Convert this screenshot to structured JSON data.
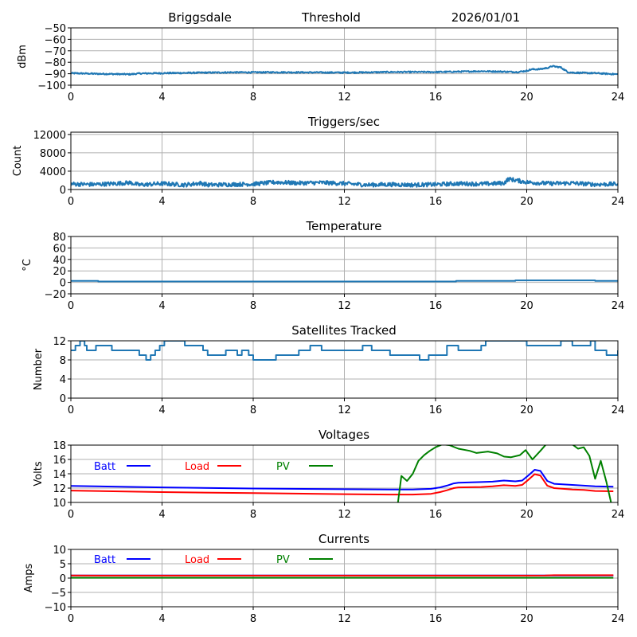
{
  "header": {
    "station": "Briggsdale",
    "mode": "Threshold",
    "date": "2026/01/01"
  },
  "chart_data": [
    {
      "id": "threshold",
      "type": "line",
      "title": "",
      "xlabel": "",
      "ylabel": "dBm",
      "xlim": [
        0,
        24
      ],
      "ylim": [
        -100,
        -50
      ],
      "xticks": [
        0,
        4,
        8,
        12,
        16,
        20,
        24
      ],
      "yticks": [
        -100,
        -90,
        -80,
        -70,
        -60,
        -50
      ],
      "ytick_labels": [
        "−100",
        "−90",
        "−80",
        "−70",
        "−60",
        "−50"
      ],
      "grid": true,
      "series": [
        {
          "name": "Threshold",
          "color": "#1f77b4",
          "noise": 0.6,
          "x": [
            0,
            1,
            2,
            2.6,
            3,
            4,
            5,
            6,
            7,
            8,
            9,
            10,
            11,
            12,
            13,
            14,
            15,
            16,
            17,
            18,
            19,
            19.6,
            20,
            20.2,
            20.6,
            21.0,
            21.1,
            21.5,
            21.8,
            22,
            22.5,
            23,
            23.5,
            24
          ],
          "y": [
            -89.5,
            -90,
            -90.3,
            -90.5,
            -89.8,
            -89.5,
            -89.3,
            -89,
            -88.8,
            -88.8,
            -88.7,
            -88.8,
            -88.9,
            -89,
            -88.8,
            -88.5,
            -88.5,
            -88.5,
            -88.2,
            -87.8,
            -88.2,
            -88.5,
            -87.5,
            -86.2,
            -86,
            -84.5,
            -83.3,
            -84.5,
            -88.5,
            -89,
            -89.3,
            -89.5,
            -90,
            -90.5
          ]
        }
      ]
    },
    {
      "id": "triggers",
      "type": "line",
      "title": "Triggers/sec",
      "xlabel": "",
      "ylabel": "Count",
      "xlim": [
        0,
        24
      ],
      "ylim": [
        0,
        12500
      ],
      "xticks": [
        0,
        4,
        8,
        12,
        16,
        20,
        24
      ],
      "yticks": [
        0,
        4000,
        8000,
        12000
      ],
      "ytick_labels": [
        "0",
        "4000",
        "8000",
        "12000"
      ],
      "grid": true,
      "series": [
        {
          "name": "Triggers",
          "color": "#1f77b4",
          "noise": 450,
          "x": [
            0,
            1,
            2,
            2.6,
            3,
            4,
            5,
            5.7,
            6,
            7,
            8,
            9,
            10,
            11,
            12,
            13,
            14,
            15,
            16,
            17,
            18,
            19,
            19.2,
            20,
            21,
            22,
            23,
            24
          ],
          "y": [
            1200,
            1100,
            1300,
            1500,
            1000,
            1300,
            1000,
            1400,
            1000,
            1100,
            1200,
            1600,
            1400,
            1500,
            1300,
            1000,
            1100,
            1000,
            1100,
            1300,
            1200,
            1400,
            2300,
            1600,
            1300,
            1400,
            1100,
            1200
          ]
        }
      ]
    },
    {
      "id": "temperature",
      "type": "line",
      "title": "Temperature",
      "xlabel": "",
      "ylabel": "°C",
      "xlim": [
        0,
        24
      ],
      "ylim": [
        -20,
        80
      ],
      "xticks": [
        0,
        4,
        8,
        12,
        16,
        20,
        24
      ],
      "yticks": [
        -20,
        0,
        20,
        40,
        60,
        80
      ],
      "ytick_labels": [
        "−20",
        "0",
        "20",
        "40",
        "60",
        "80"
      ],
      "grid": true,
      "series": [
        {
          "name": "Temperature",
          "color": "#1f77b4",
          "noise": 0,
          "x": [
            0,
            1.2,
            1.2,
            16.9,
            16.9,
            19.5,
            19.5,
            23.0,
            23.0,
            24
          ],
          "y": [
            2.5,
            2.5,
            1.5,
            1.5,
            2.5,
            2.5,
            3.5,
            3.5,
            2.5,
            2.5
          ]
        }
      ]
    },
    {
      "id": "satellites",
      "type": "line",
      "title": "Satellites Tracked",
      "xlabel": "",
      "ylabel": "Number",
      "xlim": [
        0,
        24
      ],
      "ylim": [
        0,
        12
      ],
      "xticks": [
        0,
        4,
        8,
        12,
        16,
        20,
        24
      ],
      "yticks": [
        0,
        4,
        8,
        12
      ],
      "ytick_labels": [
        "0",
        "4",
        "8",
        "12"
      ],
      "grid": true,
      "step": true,
      "series": [
        {
          "name": "Satellites",
          "color": "#1f77b4",
          "noise": 0,
          "x": [
            0,
            0.2,
            0.4,
            0.6,
            0.7,
            0.8,
            1.1,
            1.3,
            1.8,
            2.0,
            2.2,
            3.0,
            3.3,
            3.5,
            3.7,
            3.9,
            4.1,
            4.5,
            5.0,
            5.5,
            5.8,
            6.0,
            6.3,
            6.8,
            7.0,
            7.3,
            7.5,
            7.8,
            8.0,
            8.8,
            9.0,
            9.3,
            9.8,
            10.0,
            10.5,
            11.0,
            11.5,
            12.0,
            12.5,
            12.8,
            13.2,
            13.5,
            14.0,
            14.3,
            14.6,
            15.0,
            15.3,
            15.5,
            15.7,
            16.0,
            16.5,
            17.0,
            17.5,
            18.0,
            18.2,
            19.0,
            19.5,
            20.0,
            21.0,
            21.5,
            22.0,
            22.5,
            22.8,
            23.0,
            23.5,
            24
          ],
          "y": [
            10,
            11,
            12,
            11,
            10,
            10,
            11,
            11,
            10,
            10,
            10,
            9,
            8,
            9,
            10,
            11,
            12,
            12,
            11,
            11,
            10,
            9,
            9,
            10,
            10,
            9,
            10,
            9,
            8,
            8,
            9,
            9,
            9,
            10,
            11,
            10,
            10,
            10,
            10,
            11,
            10,
            10,
            9,
            9,
            9,
            9,
            8,
            8,
            9,
            9,
            11,
            10,
            10,
            11,
            12,
            12,
            12,
            11,
            11,
            12,
            11,
            11,
            12,
            10,
            9,
            10
          ]
        }
      ]
    },
    {
      "id": "voltages",
      "type": "line",
      "title": "Voltages",
      "xlabel": "",
      "ylabel": "Volts",
      "xlim": [
        0,
        24
      ],
      "ylim": [
        10,
        18
      ],
      "xticks": [
        0,
        4,
        8,
        12,
        16,
        20,
        24
      ],
      "yticks": [
        10,
        12,
        14,
        16,
        18
      ],
      "ytick_labels": [
        "10",
        "12",
        "14",
        "16",
        "18"
      ],
      "grid": true,
      "legend": [
        "Batt",
        "Load",
        "PV"
      ],
      "legend_placement": "upper-left, horizontal",
      "series": [
        {
          "name": "Batt",
          "color": "#0000ff",
          "x": [
            0,
            4,
            8,
            12,
            14,
            15,
            15.8,
            16.2,
            16.5,
            16.8,
            17,
            18,
            18.5,
            19,
            19.5,
            19.8,
            20.1,
            20.35,
            20.6,
            20.9,
            21.2,
            22,
            22.5,
            23,
            23.8
          ],
          "y": [
            12.3,
            12.1,
            11.95,
            11.85,
            11.8,
            11.8,
            11.9,
            12.1,
            12.35,
            12.65,
            12.75,
            12.85,
            12.9,
            13.05,
            12.95,
            13.05,
            13.85,
            14.55,
            14.4,
            13.0,
            12.6,
            12.45,
            12.35,
            12.25,
            12.2
          ]
        },
        {
          "name": "Load",
          "color": "#ff0000",
          "x": [
            0,
            4,
            8,
            12,
            14,
            15,
            15.8,
            16.2,
            16.5,
            16.8,
            17,
            18,
            18.5,
            19,
            19.5,
            19.8,
            20.1,
            20.35,
            20.6,
            20.9,
            21.2,
            22,
            22.5,
            23,
            23.8
          ],
          "y": [
            11.65,
            11.45,
            11.3,
            11.15,
            11.1,
            11.1,
            11.2,
            11.45,
            11.7,
            12.0,
            12.1,
            12.15,
            12.25,
            12.4,
            12.3,
            12.45,
            13.25,
            13.95,
            13.75,
            12.35,
            12.0,
            11.8,
            11.75,
            11.6,
            11.55
          ]
        },
        {
          "name": "PV",
          "color": "#008000",
          "x": [
            14.35,
            14.5,
            14.75,
            15.0,
            15.25,
            15.5,
            15.75,
            16.0,
            16.3,
            16.6,
            17.0,
            17.5,
            17.8,
            18.3,
            18.7,
            19.0,
            19.3,
            19.7,
            19.95,
            20.25,
            20.6,
            20.85,
            22.0,
            22.25,
            22.5,
            22.75,
            23.0,
            23.25,
            23.5,
            23.7
          ],
          "y": [
            10.0,
            13.7,
            13.0,
            14.0,
            15.8,
            16.6,
            17.2,
            17.7,
            18.1,
            18.0,
            17.5,
            17.2,
            16.9,
            17.1,
            16.85,
            16.4,
            16.3,
            16.6,
            17.3,
            16.0,
            17.2,
            18.1,
            18.1,
            17.5,
            17.7,
            16.5,
            13.3,
            15.8,
            12.8,
            10.0
          ]
        }
      ]
    },
    {
      "id": "currents",
      "type": "line",
      "title": "Currents",
      "xlabel": "",
      "ylabel": "Amps",
      "xlim": [
        0,
        24
      ],
      "ylim": [
        -10,
        10
      ],
      "xticks": [
        0,
        4,
        8,
        12,
        16,
        20,
        24
      ],
      "yticks": [
        -10,
        -5,
        0,
        5,
        10
      ],
      "ytick_labels": [
        "−10",
        "−5",
        "0",
        "5",
        "10"
      ],
      "grid": true,
      "legend": [
        "Batt",
        "Load",
        "PV"
      ],
      "legend_placement": "upper-left, horizontal",
      "series": [
        {
          "name": "Batt",
          "color": "#0000ff",
          "x": [
            0,
            23.8
          ],
          "y": [
            0.9,
            0.9
          ]
        },
        {
          "name": "PV",
          "color": "#008000",
          "x": [
            0,
            23.8
          ],
          "y": [
            0.1,
            0.1
          ]
        },
        {
          "name": "Load",
          "color": "#ff0000",
          "x": [
            0,
            4,
            8,
            12,
            16,
            20,
            20.8,
            21.2,
            23.8
          ],
          "y": [
            0.9,
            0.85,
            0.85,
            0.85,
            0.85,
            0.85,
            0.9,
            1.0,
            1.0
          ]
        }
      ]
    }
  ]
}
